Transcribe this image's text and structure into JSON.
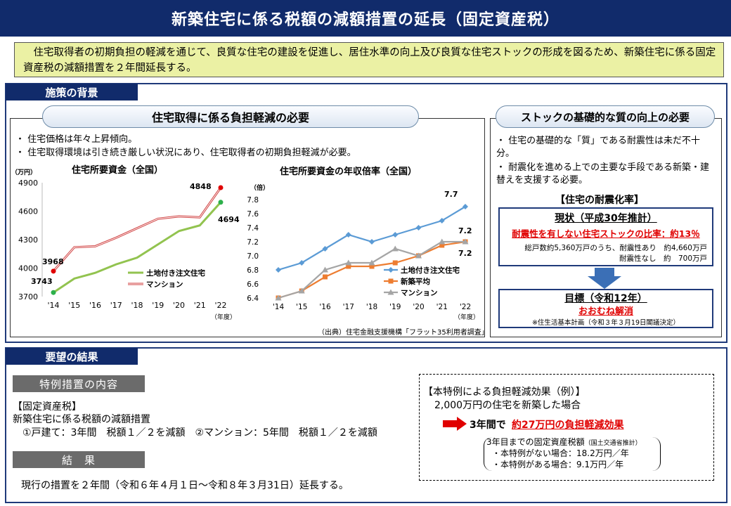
{
  "title": "新築住宅に係る税額の減額措置の延長（固定資産税）",
  "intro": "　住宅取得者の初期負担の軽減を通じて、良質な住宅の建設を促進し、居住水準の向上及び良質な住宅ストックの形成を図るため、新築住宅に係る固定資産税の減額措置を２年間延長する。",
  "background": {
    "tab": "施策の背景",
    "left_pill": "住宅取得に係る負担軽減の必要",
    "bullets": [
      "・ 住宅価格は年々上昇傾向。",
      "・ 住宅取得環境は引き続き厳しい状況にあり、住宅取得者の初期負担軽減が必要。"
    ],
    "source": "（出典）住宅金融支援機構「フラット35利用者調査」",
    "right_pill": "ストックの基礎的な質の向上の必要",
    "right_bullets": [
      "・ 住宅の基礎的な「質」である耐震性は未だ不十分。",
      "・ 耐震化を進める上での主要な手段である新築・建替えを支援する必要。"
    ],
    "rate_title": "【住宅の耐震化率】",
    "current_title": "現状（平成30年推計）",
    "current_red": "耐震性を有しない住宅ストックの比率：約13％",
    "current_detail1": "総戸数約5,360万戸のうち、耐震性あり　約4,660万戸",
    "current_detail2": "耐震性なし　約　700万戸",
    "goal_title": "目標（令和12年）",
    "goal_red": "おおむね解消",
    "goal_note": "※住生活基本計画（令和３年３月19日閣議決定）"
  },
  "chart_data": [
    {
      "type": "line",
      "title": "住宅所要資金（全国）",
      "ylabel": "（万円）",
      "xlabel": "（年度）",
      "categories": [
        "'14",
        "'15",
        "'16",
        "'17",
        "'18",
        "'19",
        "'20",
        "'21",
        "'22"
      ],
      "ylim": [
        3700,
        4900
      ],
      "yticks": [
        "4900",
        "4600",
        "4300",
        "4000",
        "3700"
      ],
      "series": [
        {
          "name": "土地付き注文住宅",
          "color": "#92c34f",
          "values": [
            3743,
            3890,
            3950,
            4040,
            4110,
            4250,
            4390,
            4450,
            4694
          ]
        },
        {
          "name": "マンション",
          "color": "#d04040",
          "values": [
            3968,
            4220,
            4230,
            4320,
            4420,
            4520,
            4545,
            4535,
            4848
          ]
        }
      ],
      "labels": {
        "start_mansion": "3968",
        "start_house": "3743",
        "end_mansion": "4848",
        "end_house": "4694"
      }
    },
    {
      "type": "line",
      "title": "住宅所要資金の年収倍率（全国）",
      "ylabel": "（倍）",
      "xlabel": "（年度）",
      "categories": [
        "'14",
        "'15",
        "'16",
        "'17",
        "'18",
        "'19",
        "'20",
        "'21",
        "'22"
      ],
      "ylim": [
        6.4,
        7.8
      ],
      "yticks": [
        "7.8",
        "7.6",
        "7.4",
        "7.2",
        "7.0",
        "6.8",
        "6.6",
        "6.4"
      ],
      "series": [
        {
          "name": "土地付き注文住宅",
          "color": "#5b9bd5",
          "values": [
            6.8,
            6.9,
            7.1,
            7.3,
            7.2,
            7.3,
            7.4,
            7.5,
            7.7
          ]
        },
        {
          "name": "新築平均",
          "color": "#ed7d31",
          "values": [
            6.4,
            6.5,
            6.7,
            6.85,
            6.85,
            6.9,
            7.0,
            7.15,
            7.2
          ]
        },
        {
          "name": "マンション",
          "color": "#a5a5a5",
          "values": [
            6.4,
            6.5,
            6.8,
            6.9,
            6.9,
            7.1,
            7.0,
            7.2,
            7.2
          ]
        }
      ],
      "labels": {
        "end1": "7.7",
        "end2": "7.2",
        "end3": "7.2"
      }
    }
  ],
  "result": {
    "tab": "要望の結果",
    "special_tab": "特例措置の内容",
    "line1": "【固定資産税】",
    "line2": "新築住宅に係る税額の減額措置",
    "line3": "　①戸建て：3年間　税額１／２を減額　②マンション：5年間　税額１／２を減額",
    "result_tab": "結　果",
    "result_text": "現行の措置を２年間（令和６年４月１日～令和８年３月31日）延長する。",
    "effect_title": "【本特例による負担軽減効果（例）】",
    "effect_case": "2,000万円の住宅を新築した場合",
    "effect_prefix": "3年間で",
    "effect_red": "約27万円の負担軽減効果",
    "calc_title": "3年目までの固定資産税額",
    "calc_note": "（国土交通省推計）",
    "calc_without": "・本特例がない場合：18.2万円／年",
    "calc_with": "・本特例がある場合：9.1万円／年"
  }
}
